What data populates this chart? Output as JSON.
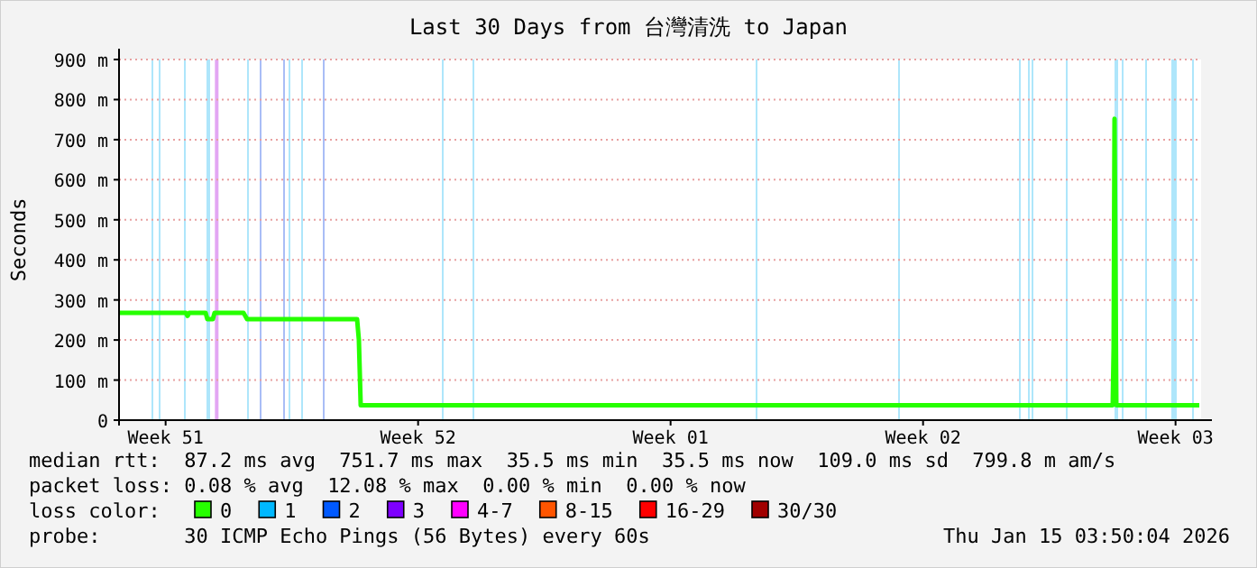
{
  "chart_data": {
    "type": "line",
    "title": "Last 30 Days from 台灣清洗 to Japan",
    "ylabel": "Seconds",
    "xlim": [
      "2025-12-17T05:00",
      "2026-01-16T05:00"
    ],
    "xticks": [
      {
        "value": "2025-12-18T12:00",
        "label": "Week 51"
      },
      {
        "value": "2025-12-25T12:00",
        "label": "Week 52"
      },
      {
        "value": "2026-01-01T12:00",
        "label": "Week 01"
      },
      {
        "value": "2026-01-08T12:00",
        "label": "Week 02"
      },
      {
        "value": "2026-01-15T12:00",
        "label": "Week 03"
      }
    ],
    "ylim": [
      0,
      900
    ],
    "yticks": [
      0,
      {
        "value": 100,
        "label": "100 m"
      },
      {
        "value": 200,
        "label": "200 m"
      },
      {
        "value": 300,
        "label": "300 m"
      },
      {
        "value": 400,
        "label": "400 m"
      },
      {
        "value": 500,
        "label": "500 m"
      },
      {
        "value": 600,
        "label": "600 m"
      },
      {
        "value": 700,
        "label": "700 m"
      },
      {
        "value": 800,
        "label": "800 m"
      },
      {
        "value": 900,
        "label": "900 m"
      }
    ],
    "grid": "y",
    "legend": "bottom",
    "legend_title": "loss color:",
    "line_style": "solid",
    "series": [
      {
        "name": "0",
        "color": "#26ff00",
        "x": [
          "2025-12-17T05:00",
          "2025-12-19T01:24",
          "2025-12-19T02:36",
          "2025-12-19T03:48",
          "2025-12-19T14:36",
          "2025-12-19T15:48",
          "2025-12-19T19:24",
          "2025-12-19T20:36",
          "2025-12-20T15:48",
          "2025-12-20T18:12",
          "2025-12-23T19:24",
          "2025-12-23T20:36",
          "2025-12-23T21:48",
          "2026-01-13T18:12",
          "2026-01-13T18:48",
          "2026-01-13T19:24",
          "2026-01-13T20:36",
          "2026-01-16T03:48"
        ],
        "values": [
          268,
          268,
          260,
          268,
          268,
          252,
          252,
          268,
          268,
          252,
          252,
          200,
          37,
          37,
          180,
          752,
          37,
          37
        ]
      },
      {
        "name": "1",
        "color": "#00b8ff"
      },
      {
        "name": "2",
        "color": "#0059ff"
      },
      {
        "name": "3",
        "color": "#7e00ff"
      },
      {
        "name": "4-7",
        "color": "#ff00ff"
      },
      {
        "name": "8-15",
        "color": "#ff5500"
      },
      {
        "name": "16-29",
        "color": "#ff0000"
      },
      {
        "name": "30/30",
        "color": "#a10000"
      }
    ],
    "bands": [
      {
        "axis": "x",
        "from": "2025-12-18T02:36",
        "to": "2025-12-18T03:48",
        "color": "#aee6fb"
      },
      {
        "axis": "x",
        "from": "2025-12-18T07:24",
        "to": "2025-12-18T08:36",
        "color": "#aee6fb"
      },
      {
        "axis": "x",
        "from": "2025-12-19T00:12",
        "to": "2025-12-19T01:24",
        "color": "#aee6fb"
      },
      {
        "axis": "x",
        "from": "2025-12-19T15:12",
        "to": "2025-12-19T17:36",
        "color": "#aee6fb"
      },
      {
        "axis": "x",
        "from": "2025-12-19T20:48",
        "to": "2025-12-19T23:12",
        "color": "#e3a6f3"
      },
      {
        "axis": "x",
        "from": "2025-12-20T18:12",
        "to": "2025-12-20T19:24",
        "color": "#aee6fb"
      },
      {
        "axis": "x",
        "from": "2025-12-21T02:36",
        "to": "2025-12-21T03:48",
        "color": "#a9bdf6"
      },
      {
        "axis": "x",
        "from": "2025-12-21T18:12",
        "to": "2025-12-21T19:24",
        "color": "#a9bdf6"
      },
      {
        "axis": "x",
        "from": "2025-12-21T21:48",
        "to": "2025-12-21T23:00",
        "color": "#aee6fb"
      },
      {
        "axis": "x",
        "from": "2025-12-22T06:12",
        "to": "2025-12-22T07:24",
        "color": "#aee6fb"
      },
      {
        "axis": "x",
        "from": "2025-12-22T20:36",
        "to": "2025-12-22T21:48",
        "color": "#a9bdf6"
      },
      {
        "axis": "x",
        "from": "2025-12-26T03:48",
        "to": "2025-12-26T05:00",
        "color": "#aee6fb"
      },
      {
        "axis": "x",
        "from": "2025-12-27T00:12",
        "to": "2025-12-27T01:24",
        "color": "#aee6fb"
      },
      {
        "axis": "x",
        "from": "2026-01-03T20:36",
        "to": "2026-01-03T21:48",
        "color": "#aee6fb"
      },
      {
        "axis": "x",
        "from": "2026-01-07T19:24",
        "to": "2026-01-07T20:36",
        "color": "#aee6fb"
      },
      {
        "axis": "x",
        "from": "2026-01-11T03:48",
        "to": "2026-01-11T05:00",
        "color": "#aee6fb"
      },
      {
        "axis": "x",
        "from": "2026-01-11T09:48",
        "to": "2026-01-11T11:00",
        "color": "#aee6fb"
      },
      {
        "axis": "x",
        "from": "2026-01-11T12:12",
        "to": "2026-01-11T13:24",
        "color": "#aee6fb"
      },
      {
        "axis": "x",
        "from": "2026-01-12T11:00",
        "to": "2026-01-12T12:12",
        "color": "#aee6fb"
      },
      {
        "axis": "x",
        "from": "2026-01-13T19:24",
        "to": "2026-01-13T21:48",
        "color": "#aee6fb"
      },
      {
        "axis": "x",
        "from": "2026-01-14T00:12",
        "to": "2026-01-14T01:24",
        "color": "#aee6fb"
      },
      {
        "axis": "x",
        "from": "2026-01-14T15:48",
        "to": "2026-01-14T17:00",
        "color": "#aee6fb"
      },
      {
        "axis": "x",
        "from": "2026-01-15T09:12",
        "to": "2026-01-15T12:48",
        "color": "#aee6fb"
      },
      {
        "axis": "x",
        "from": "2026-01-15T23:00",
        "to": "2026-01-16T00:12",
        "color": "#aee6fb"
      }
    ],
    "annotations": [
      "median rtt:  87.2 ms avg  751.7 ms max  35.5 ms min  35.5 ms now  109.0 ms sd  799.8 m am/s",
      "packet loss: 0.08 % avg  12.08 % max  0.00 % min  0.00 % now",
      "probe:       30 ICMP Echo Pings (56 Bytes) every 60s",
      "Thu Jan 15 03:50:04 2026"
    ]
  }
}
